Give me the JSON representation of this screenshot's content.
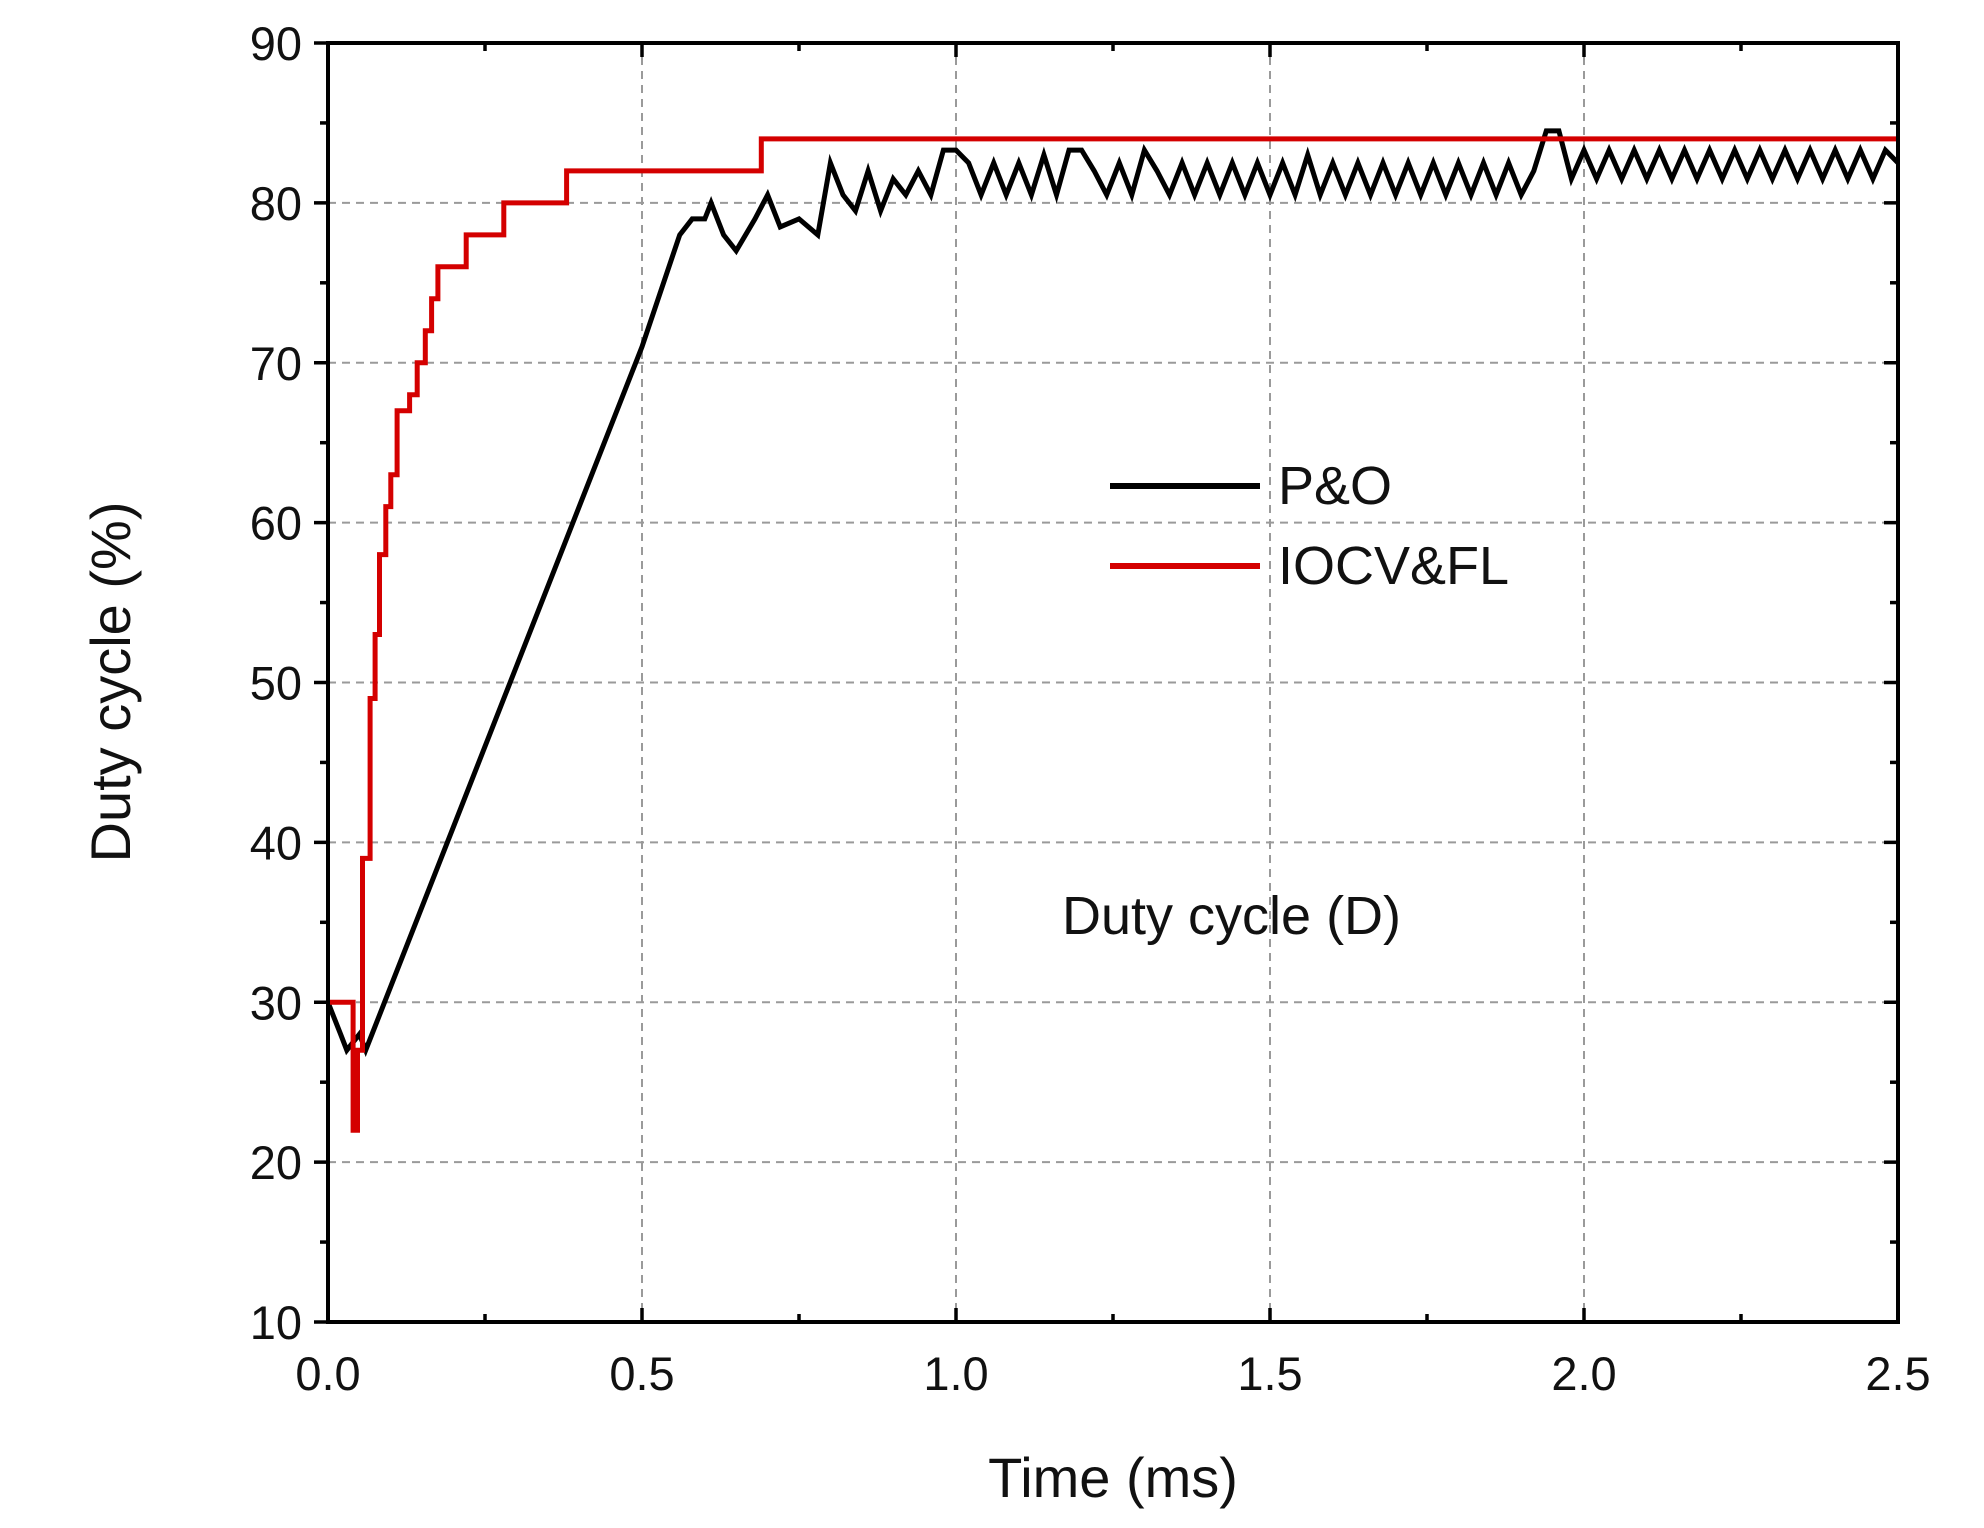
{
  "chart_data": {
    "type": "line",
    "title": "",
    "xlabel": "Time (ms)",
    "ylabel": "Duty cycle (%)",
    "xlim": [
      0.0,
      2.5
    ],
    "ylim": [
      10,
      90
    ],
    "xticks": [
      0.0,
      0.5,
      1.0,
      1.5,
      2.0,
      2.5
    ],
    "xtick_labels": [
      "0.0",
      "0.5",
      "1.0",
      "1.5",
      "2.0",
      "2.5"
    ],
    "yticks": [
      10,
      20,
      30,
      40,
      50,
      60,
      70,
      80,
      90
    ],
    "ytick_labels": [
      "10",
      "20",
      "30",
      "40",
      "50",
      "60",
      "70",
      "80",
      "90"
    ],
    "grid": true,
    "legend_position": "center-right",
    "annotation": "Duty cycle (D)",
    "series": [
      {
        "name": "P&O",
        "color": "#000000",
        "x": [
          0.0,
          0.02,
          0.03,
          0.05,
          0.06,
          0.07,
          0.1,
          0.2,
          0.3,
          0.4,
          0.5,
          0.56,
          0.58,
          0.6,
          0.61,
          0.63,
          0.65,
          0.68,
          0.7,
          0.72,
          0.75,
          0.78,
          0.8,
          0.82,
          0.84,
          0.86,
          0.88,
          0.9,
          0.92,
          0.94,
          0.96,
          0.98,
          1.0,
          1.02,
          1.04,
          1.06,
          1.08,
          1.1,
          1.12,
          1.14,
          1.16,
          1.18,
          1.2,
          1.22,
          1.24,
          1.26,
          1.28,
          1.3,
          1.32,
          1.34,
          1.36,
          1.38,
          1.4,
          1.42,
          1.44,
          1.46,
          1.48,
          1.5,
          1.52,
          1.54,
          1.56,
          1.58,
          1.6,
          1.62,
          1.64,
          1.66,
          1.68,
          1.7,
          1.72,
          1.74,
          1.76,
          1.78,
          1.8,
          1.82,
          1.84,
          1.86,
          1.88,
          1.9,
          1.92,
          1.94,
          1.96,
          1.98,
          2.0,
          2.02,
          2.04,
          2.06,
          2.08,
          2.1,
          2.12,
          2.14,
          2.16,
          2.18,
          2.2,
          2.22,
          2.24,
          2.26,
          2.28,
          2.3,
          2.32,
          2.34,
          2.36,
          2.38,
          2.4,
          2.42,
          2.44,
          2.46,
          2.48,
          2.5
        ],
        "y": [
          30,
          28,
          27,
          28,
          27,
          28,
          31,
          41,
          51,
          61,
          71,
          78,
          79,
          79,
          80,
          78,
          77,
          79,
          80.5,
          78.5,
          79,
          78,
          82.5,
          80.5,
          79.5,
          82,
          79.5,
          81.5,
          80.5,
          82,
          80.5,
          83.3,
          83.3,
          82.5,
          80.5,
          82.5,
          80.5,
          82.5,
          80.5,
          83,
          80.5,
          83.3,
          83.3,
          82,
          80.5,
          82.5,
          80.5,
          83.3,
          82,
          80.5,
          82.5,
          80.5,
          82.5,
          80.5,
          82.5,
          80.5,
          82.5,
          80.5,
          82.5,
          80.5,
          83,
          80.5,
          82.5,
          80.5,
          82.5,
          80.5,
          82.5,
          80.5,
          82.5,
          80.5,
          82.5,
          80.5,
          82.5,
          80.5,
          82.5,
          80.5,
          82.5,
          80.5,
          82,
          84.5,
          84.5,
          81.5,
          83.3,
          81.5,
          83.3,
          81.5,
          83.3,
          81.5,
          83.3,
          81.5,
          83.3,
          81.5,
          83.3,
          81.5,
          83.3,
          81.5,
          83.3,
          81.5,
          83.3,
          81.5,
          83.3,
          81.5,
          83.3,
          81.5,
          83.3,
          81.5,
          83.3,
          82.5
        ]
      },
      {
        "name": "IOCV&FL",
        "color": "#d40000",
        "step": true,
        "x": [
          0.0,
          0.04,
          0.04,
          0.047,
          0.047,
          0.055,
          0.055,
          0.067,
          0.067,
          0.075,
          0.075,
          0.082,
          0.082,
          0.092,
          0.092,
          0.1,
          0.1,
          0.11,
          0.11,
          0.13,
          0.13,
          0.142,
          0.142,
          0.155,
          0.155,
          0.165,
          0.165,
          0.175,
          0.175,
          0.18,
          0.18,
          0.22,
          0.22,
          0.28,
          0.28,
          0.38,
          0.38,
          0.69,
          0.69,
          2.5
        ],
        "y": [
          30,
          30,
          22,
          22,
          27,
          27,
          39,
          39,
          49,
          49,
          53,
          53,
          58,
          58,
          61,
          61,
          63,
          63,
          67,
          67,
          68,
          68,
          70,
          70,
          72,
          72,
          74,
          74,
          76,
          76,
          76,
          76,
          78,
          78,
          80,
          80,
          82,
          82,
          84,
          84
        ]
      }
    ]
  }
}
